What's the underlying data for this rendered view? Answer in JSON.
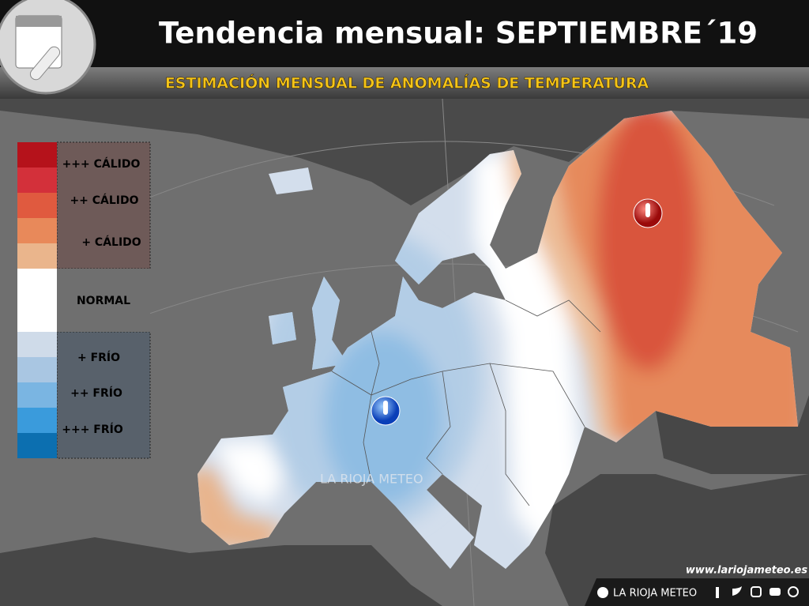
{
  "header": {
    "title": "Tendencia mensual: SEPTIEMBRE´19",
    "subtitle": "ESTIMACIÓN MENSUAL DE ANOMALÍAS DE TEMPERATURA"
  },
  "legend": {
    "labels": [
      "+++ CÁLIDO",
      "++ CÁLIDO",
      "+ CÁLIDO",
      "NORMAL",
      "+ FRÍO",
      "++ FRÍO",
      "+++ FRÍO"
    ]
  },
  "watermark": "LA RIOJA METEO",
  "website": "www.lariojameteo.es",
  "footer": {
    "brand": "LA RIOJA METEO"
  }
}
